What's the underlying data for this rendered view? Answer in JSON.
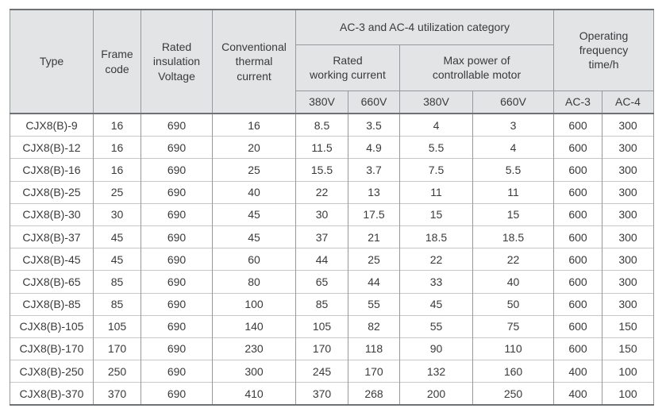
{
  "table": {
    "header": {
      "type": "Type",
      "frame_code": "Frame\ncode",
      "rated_insulation_voltage": "Rated\ninsulation\nVoltage",
      "conventional_thermal_current": "Conventional\nthermal\ncurrent",
      "ac3_ac4_category": "AC-3 and AC-4 utilization category",
      "rated_working_current": "Rated\nworking current",
      "max_power": "Max power of\ncontrollable motor",
      "operating_frequency": "Operating\nfrequency\ntime/h"
    },
    "sub_headers": [
      "380V",
      "660V",
      "380V",
      "660V",
      "AC-3",
      "AC-4"
    ],
    "column_keys": [
      "type",
      "frame-code",
      "rated-insulation-voltage",
      "conventional-thermal-current",
      "rated-working-current-380v",
      "rated-working-current-660v",
      "max-power-380v",
      "max-power-660v",
      "ac-3",
      "ac-4"
    ],
    "rows": [
      [
        "CJX8(B)-9",
        "16",
        "690",
        "16",
        "8.5",
        "3.5",
        "4",
        "3",
        "600",
        "300"
      ],
      [
        "CJX8(B)-12",
        "16",
        "690",
        "20",
        "11.5",
        "4.9",
        "5.5",
        "4",
        "600",
        "300"
      ],
      [
        "CJX8(B)-16",
        "16",
        "690",
        "25",
        "15.5",
        "3.7",
        "7.5",
        "5.5",
        "600",
        "300"
      ],
      [
        "CJX8(B)-25",
        "25",
        "690",
        "40",
        "22",
        "13",
        "11",
        "11",
        "600",
        "300"
      ],
      [
        "CJX8(B)-30",
        "30",
        "690",
        "45",
        "30",
        "17.5",
        "15",
        "15",
        "600",
        "300"
      ],
      [
        "CJX8(B)-37",
        "45",
        "690",
        "45",
        "37",
        "21",
        "18.5",
        "18.5",
        "600",
        "300"
      ],
      [
        "CJX8(B)-45",
        "45",
        "690",
        "60",
        "44",
        "25",
        "22",
        "22",
        "600",
        "300"
      ],
      [
        "CJX8(B)-65",
        "85",
        "690",
        "80",
        "65",
        "44",
        "33",
        "40",
        "600",
        "300"
      ],
      [
        "CJX8(B)-85",
        "85",
        "690",
        "100",
        "85",
        "55",
        "45",
        "50",
        "600",
        "300"
      ],
      [
        "CJX8(B)-105",
        "105",
        "690",
        "140",
        "105",
        "82",
        "55",
        "75",
        "600",
        "150"
      ],
      [
        "CJX8(B)-170",
        "170",
        "690",
        "230",
        "170",
        "118",
        "90",
        "110",
        "600",
        "150"
      ],
      [
        "CJX8(B)-250",
        "250",
        "690",
        "300",
        "245",
        "170",
        "132",
        "160",
        "400",
        "100"
      ],
      [
        "CJX8(B)-370",
        "370",
        "690",
        "410",
        "370",
        "268",
        "200",
        "250",
        "400",
        "100"
      ]
    ]
  },
  "colors": {
    "header_bg": "#e2e4e6",
    "border_dark": "#6e7275",
    "border_mid": "#96999c",
    "border_light": "#b9bcbe",
    "row_line": "#c5c8ca",
    "text": "#3a3a3c"
  }
}
